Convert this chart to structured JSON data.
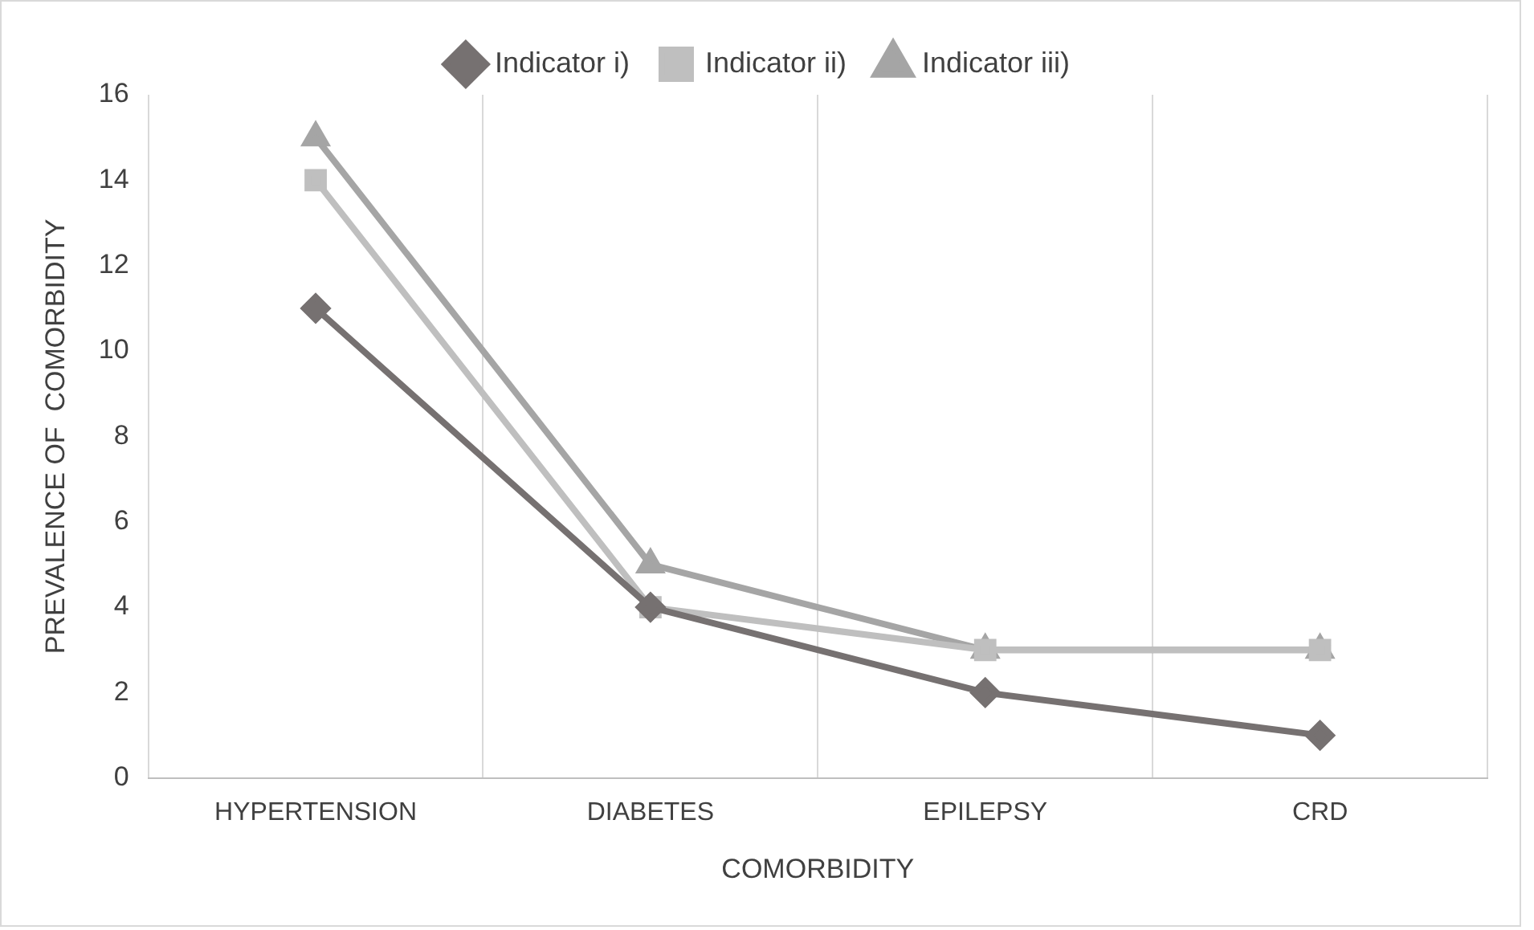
{
  "chart_data": {
    "type": "line",
    "xlabel": "COMORBIDITY",
    "ylabel": "PREVALENCE OF  COMORBIDITY",
    "categories": [
      "HYPERTENSION",
      "DIABETES",
      "EPILEPSY",
      "CRD"
    ],
    "series": [
      {
        "name": "Indicator i)",
        "color": "#767171",
        "values": [
          11,
          4,
          2,
          1
        ],
        "marker": "diamond"
      },
      {
        "name": "Indicator ii)",
        "color": "#bfbfbf",
        "values": [
          14,
          4,
          3,
          3
        ],
        "marker": "square"
      },
      {
        "name": "Indicator iii)",
        "color": "#a5a5a5",
        "values": [
          15,
          5,
          3,
          3
        ],
        "marker": "triangle"
      }
    ],
    "ylim": [
      0,
      16
    ],
    "yticks": [
      0,
      2,
      4,
      6,
      8,
      10,
      12,
      14,
      16
    ],
    "grid": "x",
    "legend": "top"
  }
}
